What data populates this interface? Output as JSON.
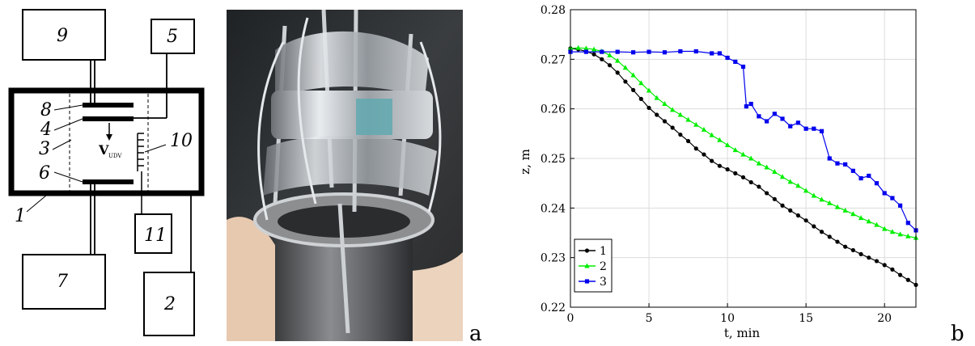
{
  "schematic": {
    "labels": [
      "9",
      "5",
      "8",
      "4",
      "3",
      "10",
      "6",
      "1",
      "11",
      "7",
      "2"
    ],
    "velocity_label": "V",
    "velocity_subscript": "UDV"
  },
  "panel_labels": {
    "a": "a",
    "b": "b"
  },
  "chart_data": {
    "type": "line",
    "xlabel": "t, min",
    "ylabel": "z, m",
    "xlim": [
      0,
      22
    ],
    "ylim": [
      0.22,
      0.28
    ],
    "xticks": [
      "0",
      "5",
      "10",
      "15",
      "20"
    ],
    "yticks": [
      "0.22",
      "0.23",
      "0.24",
      "0.25",
      "0.26",
      "0.27",
      "0.28"
    ],
    "grid": true,
    "legend_placement": "bottom-left",
    "series": [
      {
        "name": "1",
        "color": "#000000",
        "marker": "circle",
        "points": [
          [
            0,
            0.2722
          ],
          [
            0.5,
            0.272
          ],
          [
            1,
            0.2716
          ],
          [
            1.5,
            0.271
          ],
          [
            2,
            0.27
          ],
          [
            2.5,
            0.2688
          ],
          [
            3,
            0.2673
          ],
          [
            3.5,
            0.2655
          ],
          [
            4,
            0.2638
          ],
          [
            4.5,
            0.262
          ],
          [
            5,
            0.2602
          ],
          [
            5.5,
            0.2588
          ],
          [
            6,
            0.2575
          ],
          [
            6.5,
            0.2562
          ],
          [
            7,
            0.2548
          ],
          [
            7.5,
            0.2535
          ],
          [
            8,
            0.252
          ],
          [
            8.5,
            0.2508
          ],
          [
            9,
            0.2495
          ],
          [
            9.5,
            0.2485
          ],
          [
            10,
            0.2478
          ],
          [
            10.5,
            0.247
          ],
          [
            11,
            0.2462
          ],
          [
            11.5,
            0.2452
          ],
          [
            12,
            0.2443
          ],
          [
            12.5,
            0.243
          ],
          [
            13,
            0.2418
          ],
          [
            13.5,
            0.2405
          ],
          [
            14,
            0.2395
          ],
          [
            14.5,
            0.2385
          ],
          [
            15,
            0.2375
          ],
          [
            15.5,
            0.2363
          ],
          [
            16,
            0.2352
          ],
          [
            16.5,
            0.2342
          ],
          [
            17,
            0.2332
          ],
          [
            17.5,
            0.2322
          ],
          [
            18,
            0.2315
          ],
          [
            18.5,
            0.2307
          ],
          [
            19,
            0.23
          ],
          [
            19.5,
            0.2293
          ],
          [
            20,
            0.2285
          ],
          [
            20.5,
            0.2276
          ],
          [
            21,
            0.2265
          ],
          [
            21.5,
            0.2255
          ],
          [
            22,
            0.2245
          ]
        ]
      },
      {
        "name": "2",
        "color": "#00ee00",
        "marker": "triangle",
        "points": [
          [
            0,
            0.2722
          ],
          [
            0.5,
            0.2723
          ],
          [
            1,
            0.2722
          ],
          [
            1.5,
            0.272
          ],
          [
            2,
            0.2716
          ],
          [
            2.5,
            0.2708
          ],
          [
            3,
            0.2697
          ],
          [
            3.5,
            0.2683
          ],
          [
            4,
            0.2668
          ],
          [
            4.5,
            0.2652
          ],
          [
            5,
            0.2637
          ],
          [
            5.5,
            0.2622
          ],
          [
            6,
            0.261
          ],
          [
            6.5,
            0.2598
          ],
          [
            7,
            0.2588
          ],
          [
            7.5,
            0.2578
          ],
          [
            8,
            0.2568
          ],
          [
            8.5,
            0.2558
          ],
          [
            9,
            0.2547
          ],
          [
            9.5,
            0.2537
          ],
          [
            10,
            0.2527
          ],
          [
            10.5,
            0.2517
          ],
          [
            11,
            0.2508
          ],
          [
            11.5,
            0.25
          ],
          [
            12,
            0.249
          ],
          [
            12.5,
            0.2482
          ],
          [
            13,
            0.2473
          ],
          [
            13.5,
            0.2463
          ],
          [
            14,
            0.2453
          ],
          [
            14.5,
            0.2445
          ],
          [
            15,
            0.2435
          ],
          [
            15.5,
            0.2425
          ],
          [
            16,
            0.2417
          ],
          [
            16.5,
            0.241
          ],
          [
            17,
            0.2402
          ],
          [
            17.5,
            0.2395
          ],
          [
            18,
            0.2388
          ],
          [
            18.5,
            0.238
          ],
          [
            19,
            0.2373
          ],
          [
            19.5,
            0.2366
          ],
          [
            20,
            0.2358
          ],
          [
            20.5,
            0.2352
          ],
          [
            21,
            0.2347
          ],
          [
            21.5,
            0.2343
          ],
          [
            22,
            0.234
          ]
        ]
      },
      {
        "name": "3",
        "color": "#0000ee",
        "marker": "square",
        "points": [
          [
            0,
            0.2715
          ],
          [
            1,
            0.2715
          ],
          [
            2,
            0.2715
          ],
          [
            3,
            0.2715
          ],
          [
            4,
            0.2714
          ],
          [
            5,
            0.2715
          ],
          [
            6,
            0.2714
          ],
          [
            7,
            0.2716
          ],
          [
            8,
            0.2716
          ],
          [
            9,
            0.2712
          ],
          [
            9.5,
            0.2712
          ],
          [
            10,
            0.2703
          ],
          [
            10.5,
            0.2695
          ],
          [
            11,
            0.2685
          ],
          [
            11.2,
            0.2605
          ],
          [
            11.5,
            0.261
          ],
          [
            12,
            0.2585
          ],
          [
            12.5,
            0.2575
          ],
          [
            13,
            0.259
          ],
          [
            13.5,
            0.258
          ],
          [
            14,
            0.2565
          ],
          [
            14.5,
            0.2572
          ],
          [
            15,
            0.256
          ],
          [
            15.5,
            0.256
          ],
          [
            16,
            0.2555
          ],
          [
            16.5,
            0.25
          ],
          [
            17,
            0.249
          ],
          [
            17.5,
            0.2488
          ],
          [
            18,
            0.2475
          ],
          [
            18.5,
            0.246
          ],
          [
            19,
            0.2465
          ],
          [
            19.5,
            0.245
          ],
          [
            20,
            0.243
          ],
          [
            20.5,
            0.242
          ],
          [
            21,
            0.2405
          ],
          [
            21.5,
            0.237
          ],
          [
            22,
            0.2355
          ]
        ]
      }
    ]
  }
}
